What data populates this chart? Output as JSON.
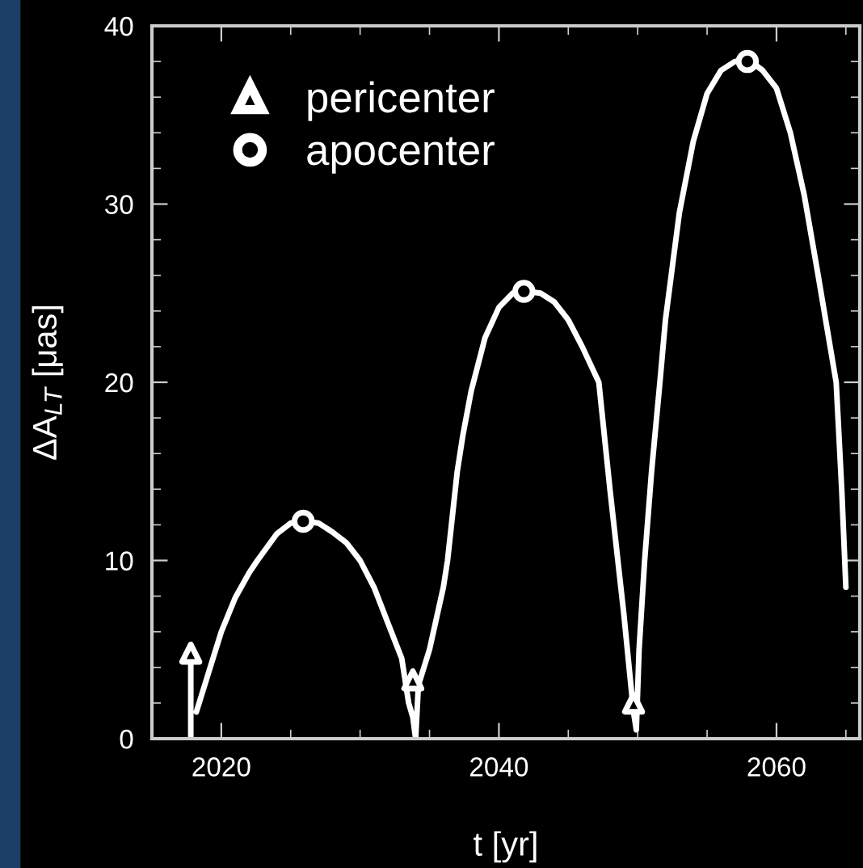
{
  "chart_data": {
    "type": "line",
    "xlabel": "t [yr]",
    "ylabel": "ΔA$_{LT}$ [μas]",
    "xlim": [
      2015,
      2066
    ],
    "xticks": [
      2020,
      2040,
      2060
    ],
    "ylim": [
      0,
      40
    ],
    "yticks": [
      0,
      10,
      20,
      30,
      40
    ],
    "grid": false,
    "legend": "top left",
    "series": [
      {
        "color": "#ffffff",
        "marker": "none",
        "x": [
          2017.8,
          2017.8,
          2018.0,
          2018.2,
          2019.2,
          2020,
          2021,
          2022,
          2022.6,
          2024,
          2025,
          2026,
          2027,
          2028,
          2029,
          2030,
          2031,
          2032,
          2033,
          2033.5,
          2033.8,
          2034,
          2034.2,
          2035,
          2036,
          2036.3,
          2037,
          2037.4,
          2038,
          2039,
          2040,
          2041,
          2042,
          2043,
          2044,
          2045,
          2046,
          2047.2,
          2048,
          2049,
          2049.7,
          2049.9,
          2050.1,
          2050.5,
          2051,
          2051.6,
          2052,
          2053,
          2054,
          2055,
          2056,
          2057,
          2058,
          2059,
          2060,
          2061,
          2062,
          2063,
          2064.3,
          2064.7,
          2065
        ],
        "values": [
          0,
          4.3,
          null,
          1.5,
          4,
          6,
          7.9,
          9.3,
          10,
          11.5,
          12.1,
          12.2,
          12.1,
          11.6,
          11,
          10,
          8.5,
          6.5,
          4.5,
          2,
          1.2,
          0,
          3,
          5,
          8.5,
          10,
          15,
          17,
          19.5,
          22.5,
          24.2,
          25,
          25.1,
          25,
          24.5,
          23.5,
          22,
          20,
          14,
          7,
          1.5,
          0.5,
          5,
          10,
          15,
          20,
          23.5,
          29.5,
          33.5,
          36.2,
          37.5,
          38,
          38.1,
          37.5,
          36.5,
          34,
          30.5,
          26,
          20,
          14,
          8.5
        ]
      },
      {
        "type": "scatter",
        "name": "pericenter",
        "color": "#ffffff",
        "marker": "triangle",
        "x": [
          2017.8,
          2033.8,
          2049.7
        ],
        "values": [
          4.8,
          3.3,
          2.0
        ]
      },
      {
        "type": "scatter",
        "name": "apocenter",
        "color": "#ffffff",
        "marker": "circle",
        "x": [
          2025.9,
          2041.8,
          2057.9
        ],
        "values": [
          12.2,
          25.1,
          38.0
        ]
      }
    ]
  }
}
